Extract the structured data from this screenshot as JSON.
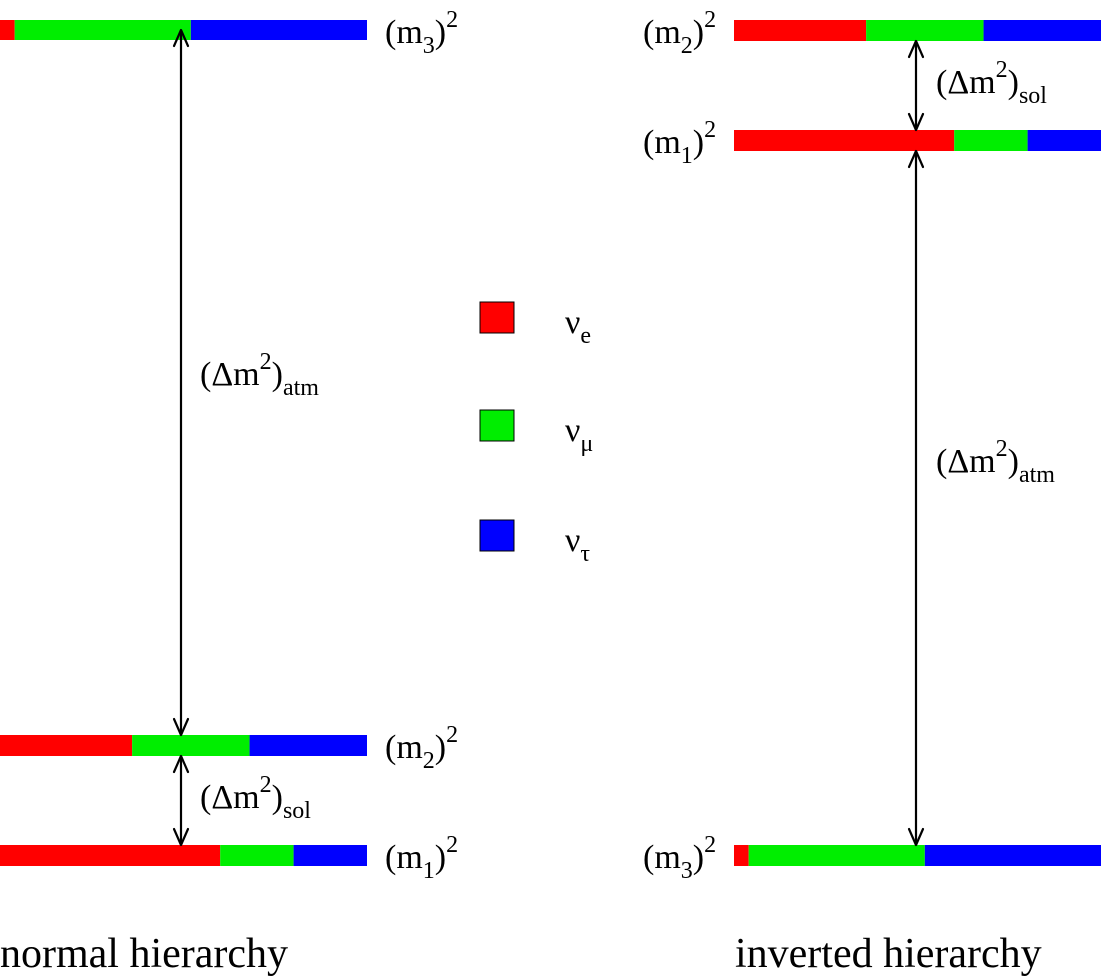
{
  "colors": {
    "nu_e": "#ff0000",
    "nu_mu": "#00ee00",
    "nu_tau": "#0000ff"
  },
  "legend": [
    {
      "key": "nu_e",
      "symbol": "ν",
      "sub": "e"
    },
    {
      "key": "nu_mu",
      "symbol": "ν",
      "sub": "μ"
    },
    {
      "key": "nu_tau",
      "symbol": "ν",
      "sub": "τ"
    }
  ],
  "normal": {
    "caption": "normal hierarchy",
    "levels": [
      {
        "id": "m3",
        "label": "m",
        "sub": "3",
        "sup": "2",
        "fractions": {
          "nu_e": 0.04,
          "nu_mu": 0.48,
          "nu_tau": 0.48
        }
      },
      {
        "id": "m2",
        "label": "m",
        "sub": "2",
        "sup": "2",
        "fractions": {
          "nu_e": 0.36,
          "nu_mu": 0.32,
          "nu_tau": 0.32
        }
      },
      {
        "id": "m1",
        "label": "m",
        "sub": "1",
        "sup": "2",
        "fractions": {
          "nu_e": 0.6,
          "nu_mu": 0.2,
          "nu_tau": 0.2
        }
      }
    ],
    "splittings": [
      {
        "id": "atm",
        "text": "(Δm",
        "sup": "2",
        "close": ")",
        "sub": "atm"
      },
      {
        "id": "sol",
        "text": "(Δm",
        "sup": "2",
        "close": ")",
        "sub": "sol"
      }
    ]
  },
  "inverted": {
    "caption": "inverted hierarchy",
    "levels": [
      {
        "id": "m2",
        "label": "m",
        "sub": "2",
        "sup": "2",
        "fractions": {
          "nu_e": 0.36,
          "nu_mu": 0.32,
          "nu_tau": 0.32
        }
      },
      {
        "id": "m1",
        "label": "m",
        "sub": "1",
        "sup": "2",
        "fractions": {
          "nu_e": 0.6,
          "nu_mu": 0.2,
          "nu_tau": 0.2
        }
      },
      {
        "id": "m3",
        "label": "m",
        "sub": "3",
        "sup": "2",
        "fractions": {
          "nu_e": 0.04,
          "nu_mu": 0.48,
          "nu_tau": 0.48
        }
      }
    ],
    "splittings": [
      {
        "id": "sol",
        "text": "(Δm",
        "sup": "2",
        "close": ")",
        "sub": "sol"
      },
      {
        "id": "atm",
        "text": "(Δm",
        "sup": "2",
        "close": ")",
        "sub": "atm"
      }
    ]
  }
}
